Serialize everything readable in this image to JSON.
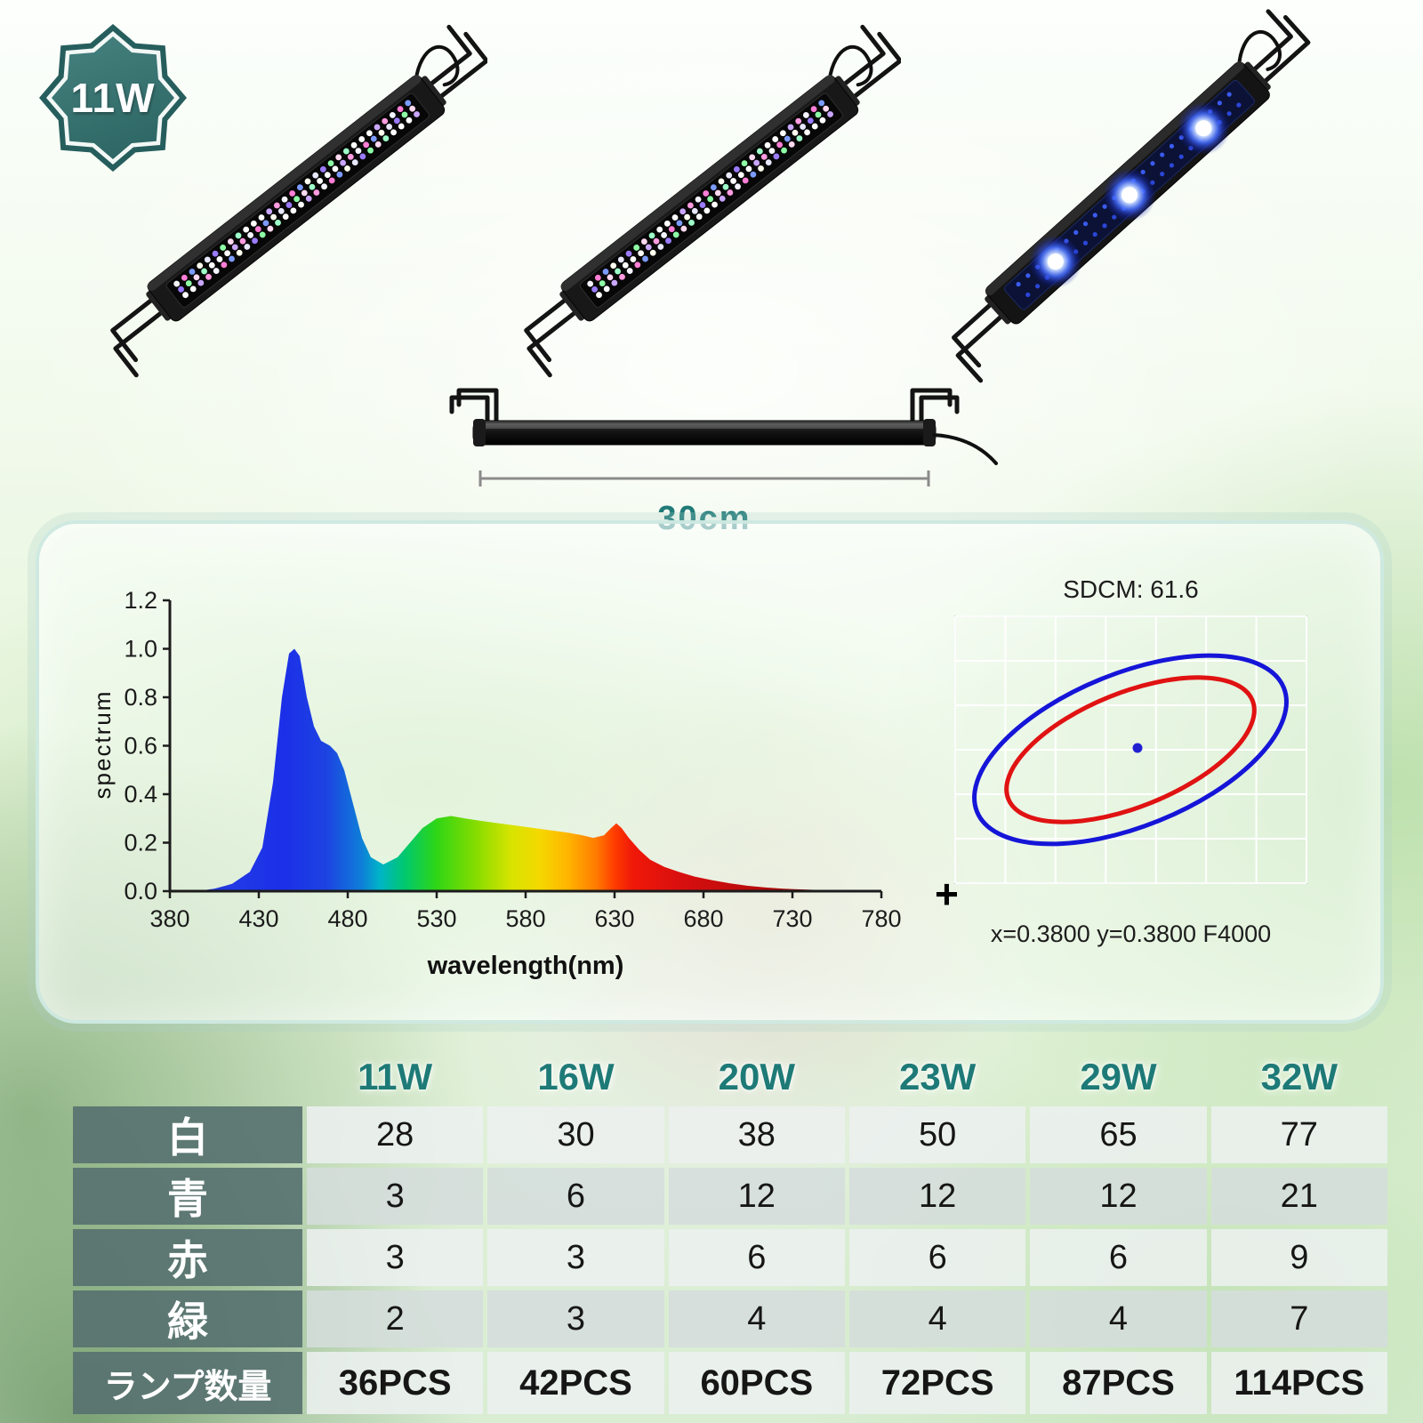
{
  "badge": {
    "label": "11W"
  },
  "product": {
    "dimension_label": "30cm"
  },
  "colors": {
    "accent_teal": "#1f7a78",
    "badge_teal": "#2f6b69",
    "table_label_bg": "#587270",
    "ellipse_blue": "#1515d8",
    "ellipse_red": "#e01212"
  },
  "chromaticity": {
    "title": "SDCM:  61.6",
    "coords_label": "x=0.3800 y=0.3800 F4000",
    "plus_mark": "+"
  },
  "chart_data": [
    {
      "type": "area",
      "name": "led-emission-spectrum",
      "title": "",
      "xlabel": "wavelength(nm)",
      "ylabel": "spectrum",
      "xlim": [
        380,
        780
      ],
      "ylim": [
        0,
        1.2
      ],
      "x_ticks": [
        "380",
        "430",
        "480",
        "530",
        "580",
        "630",
        "680",
        "730",
        "780"
      ],
      "y_ticks": [
        "0.0",
        "0.2",
        "0.4",
        "0.6",
        "0.8",
        "1.0",
        "1.2"
      ],
      "x": [
        380,
        395,
        405,
        415,
        425,
        432,
        438,
        443,
        447,
        450,
        453,
        457,
        461,
        465,
        470,
        474,
        478,
        483,
        488,
        493,
        500,
        508,
        515,
        522,
        530,
        538,
        546,
        555,
        565,
        575,
        585,
        595,
        605,
        612,
        618,
        624,
        628,
        631,
        634,
        638,
        644,
        650,
        658,
        666,
        675,
        685,
        695,
        705,
        715,
        725,
        740,
        755,
        770,
        780
      ],
      "y": [
        0,
        0,
        0.01,
        0.03,
        0.08,
        0.18,
        0.45,
        0.8,
        0.98,
        1.0,
        0.97,
        0.8,
        0.68,
        0.62,
        0.6,
        0.57,
        0.5,
        0.36,
        0.22,
        0.14,
        0.11,
        0.14,
        0.2,
        0.26,
        0.3,
        0.31,
        0.3,
        0.29,
        0.28,
        0.27,
        0.26,
        0.25,
        0.24,
        0.23,
        0.22,
        0.23,
        0.26,
        0.28,
        0.26,
        0.22,
        0.17,
        0.13,
        0.1,
        0.08,
        0.06,
        0.045,
        0.032,
        0.022,
        0.015,
        0.01,
        0.006,
        0.003,
        0.001,
        0
      ]
    },
    {
      "type": "table",
      "name": "led-count-by-model",
      "columns": [
        "11W",
        "16W",
        "20W",
        "23W",
        "29W",
        "32W"
      ],
      "rows": [
        {
          "label": "白",
          "values": [
            "28",
            "30",
            "38",
            "50",
            "65",
            "77"
          ]
        },
        {
          "label": "青",
          "values": [
            "3",
            "6",
            "12",
            "12",
            "12",
            "21"
          ]
        },
        {
          "label": "赤",
          "values": [
            "3",
            "3",
            "6",
            "6",
            "6",
            "9"
          ]
        },
        {
          "label": "緑",
          "values": [
            "2",
            "3",
            "4",
            "4",
            "4",
            "7"
          ]
        },
        {
          "label": "ランプ数量",
          "values": [
            "36PCS",
            "42PCS",
            "60PCS",
            "72PCS",
            "87PCS",
            "114PCS"
          ]
        }
      ]
    }
  ]
}
